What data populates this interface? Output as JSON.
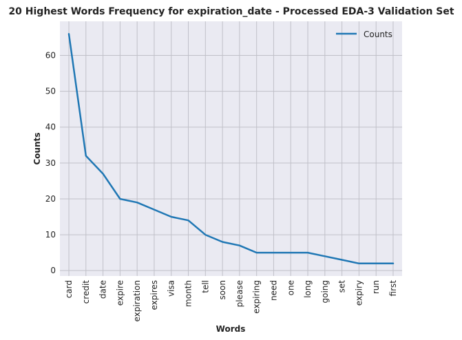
{
  "chart_data": {
    "type": "line",
    "title": "20 Highest Words Frequency for expiration_date - Processed EDA-3 Validation Set",
    "xlabel": "Words",
    "ylabel": "Counts",
    "categories": [
      "card",
      "credit",
      "date",
      "expire",
      "expiration",
      "expires",
      "visa",
      "month",
      "tell",
      "soon",
      "please",
      "expiring",
      "need",
      "one",
      "long",
      "going",
      "set",
      "expiry",
      "run",
      "first"
    ],
    "series": [
      {
        "name": "Counts",
        "color": "#1f77b4",
        "values": [
          66,
          32,
          27,
          20,
          19,
          17,
          15,
          14,
          10,
          8,
          7,
          5,
          5,
          5,
          5,
          4,
          3,
          2,
          2,
          2
        ]
      }
    ],
    "ylim": [
      -1.5,
      69.5
    ],
    "yticks": [
      0,
      10,
      20,
      30,
      40,
      50,
      60
    ],
    "grid": true,
    "legend_position": "top-right",
    "background_color": "#eaeaf2",
    "grid_color": "#c0c0c8"
  }
}
